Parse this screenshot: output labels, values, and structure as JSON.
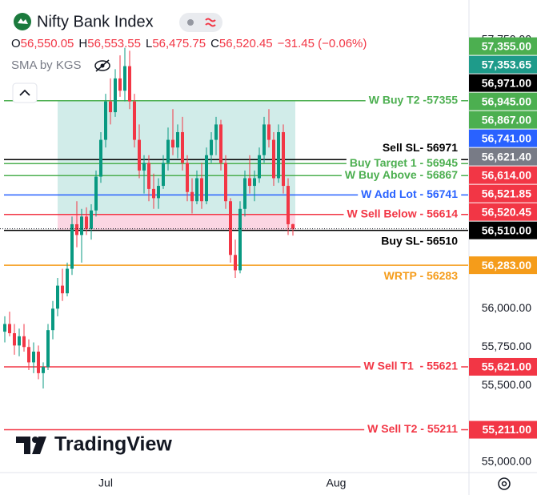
{
  "chart_data": {
    "type": "candlestick",
    "title": "Nifty Bank Index",
    "header": {
      "o_key": "O",
      "open": "56,550.05",
      "h_key": "H",
      "high": "56,553.55",
      "l_key": "L",
      "low": "56,475.75",
      "c_key": "C",
      "close": "56,520.45",
      "change": "−31.45 (−0.06%)"
    },
    "indicator": "SMA by KGS",
    "watermark": "TradingView",
    "up_color": "#089981",
    "down_color": "#f23645",
    "candles": {
      "open": [
        55850,
        55900,
        55840,
        55760,
        55820,
        55750,
        55650,
        55720,
        55580,
        55620,
        55860,
        56000,
        56150,
        56100,
        56260,
        56550,
        56480,
        56600,
        56520,
        56640,
        56860,
        57100,
        57350,
        57280,
        57500,
        57420,
        57580,
        57350,
        57100,
        56900,
        56950,
        56780,
        56720,
        56800,
        56950,
        57100,
        57050,
        57150,
        56950,
        56760,
        56700,
        56850,
        56700,
        57000,
        57100,
        57200,
        56950,
        56700,
        56350,
        56250,
        56650,
        56850,
        56800,
        56850,
        57000,
        57200,
        57100,
        56850,
        57150,
        56800,
        56550.05
      ],
      "high": [
        55950,
        55980,
        55900,
        55870,
        55900,
        55800,
        55780,
        55760,
        55650,
        55900,
        56050,
        56200,
        56260,
        56300,
        56600,
        56700,
        56650,
        56660,
        56680,
        56900,
        57150,
        57400,
        57500,
        57560,
        57650,
        57700,
        57680,
        57400,
        57200,
        57000,
        57000,
        56880,
        56850,
        57000,
        57180,
        57300,
        57200,
        57250,
        57000,
        56850,
        56900,
        56950,
        57050,
        57150,
        57250,
        57230,
        57000,
        56720,
        56450,
        56700,
        56900,
        57000,
        56900,
        57050,
        57250,
        57300,
        57150,
        57200,
        57200,
        56850,
        56553.55
      ],
      "low": [
        55780,
        55820,
        55700,
        55690,
        55720,
        55600,
        55580,
        55540,
        55480,
        55600,
        55800,
        55950,
        56050,
        56080,
        56220,
        56400,
        56300,
        56480,
        56450,
        56600,
        56820,
        57050,
        57200,
        57250,
        57380,
        57350,
        57300,
        57050,
        56850,
        56750,
        56700,
        56650,
        56650,
        56780,
        56900,
        57000,
        56980,
        56900,
        56700,
        56620,
        56680,
        56650,
        56680,
        56950,
        57000,
        56900,
        56650,
        56300,
        56200,
        56230,
        56600,
        56750,
        56700,
        56820,
        56950,
        57050,
        56800,
        56820,
        56750,
        56480,
        56475.75
      ],
      "close": [
        55900,
        55840,
        55760,
        55820,
        55750,
        55650,
        55720,
        55580,
        55620,
        55860,
        56000,
        56150,
        56100,
        56260,
        56550,
        56480,
        56600,
        56520,
        56640,
        56860,
        57100,
        57350,
        57280,
        57500,
        57420,
        57580,
        57350,
        57100,
        56900,
        56950,
        56780,
        56720,
        56800,
        56950,
        57100,
        57050,
        57150,
        56950,
        56760,
        56700,
        56850,
        56700,
        57000,
        57100,
        57200,
        56950,
        56700,
        56350,
        56250,
        56650,
        56850,
        56800,
        56850,
        57000,
        57200,
        57100,
        56850,
        57150,
        56800,
        56550,
        56520.45
      ]
    },
    "xlim": [
      -1,
      96.5
    ],
    "xticks": [
      {
        "value": 21,
        "label": "Jul"
      },
      {
        "value": 69,
        "label": "Aug"
      }
    ],
    "ylim": [
      54932,
      58011
    ],
    "yticks": [
      {
        "value": 57750,
        "label": "57,750.00"
      },
      {
        "value": 56000,
        "label": "56,000.00"
      },
      {
        "value": 55750,
        "label": "55,750.00"
      },
      {
        "value": 55500,
        "label": "55,500.00"
      },
      {
        "value": 55000,
        "label": "55,000.00"
      }
    ],
    "levels": [
      {
        "name": "W Buy T2 -57355",
        "value": 57355,
        "value_label": "57,355.00",
        "color": "#4caf50"
      },
      {
        "name": "Sell SL- 56971",
        "value": 56971,
        "value_label": "56,971.00",
        "color": "#000000"
      },
      {
        "name": "Buy Target 1 - 56945",
        "value": 56945,
        "value_label": "56,945.00",
        "color": "#4caf50"
      },
      {
        "name": "W Buy Above - 56867",
        "value": 56867,
        "value_label": "56,867.00",
        "color": "#4caf50"
      },
      {
        "name": "W Add Lot - 56741",
        "value": 56741,
        "value_label": "56,741.00",
        "color": "#2962ff"
      },
      {
        "name": "W Sell Below - 56614",
        "value": 56614,
        "value_label": "56,614.00",
        "color": "#f23645"
      },
      {
        "name": "Buy SL- 56510",
        "value": 56510,
        "value_label": "56,510.00",
        "color": "#000000"
      },
      {
        "name": "WRTP - 56283",
        "value": 56283,
        "value_label": "56,283.00",
        "color": "#f59c1a"
      },
      {
        "name": "W Sell T1  - 55621",
        "value": 55621,
        "value_label": "55,621.00",
        "color": "#f23645"
      },
      {
        "name": "W Sell T2 - 55211",
        "value": 55211,
        "value_label": "55,211.00",
        "color": "#f23645"
      }
    ],
    "price_markers": [
      {
        "value": 57353.65,
        "label": "57,353.65",
        "color": "#1e9b8a"
      },
      {
        "value": 56621.4,
        "label": "56,621.40",
        "color": "#787b86"
      },
      {
        "value": 56521.85,
        "label": "56,521.85",
        "color": "#f23645"
      },
      {
        "value": 56520.45,
        "label": "56,520.45",
        "color": "#f23645"
      }
    ]
  }
}
